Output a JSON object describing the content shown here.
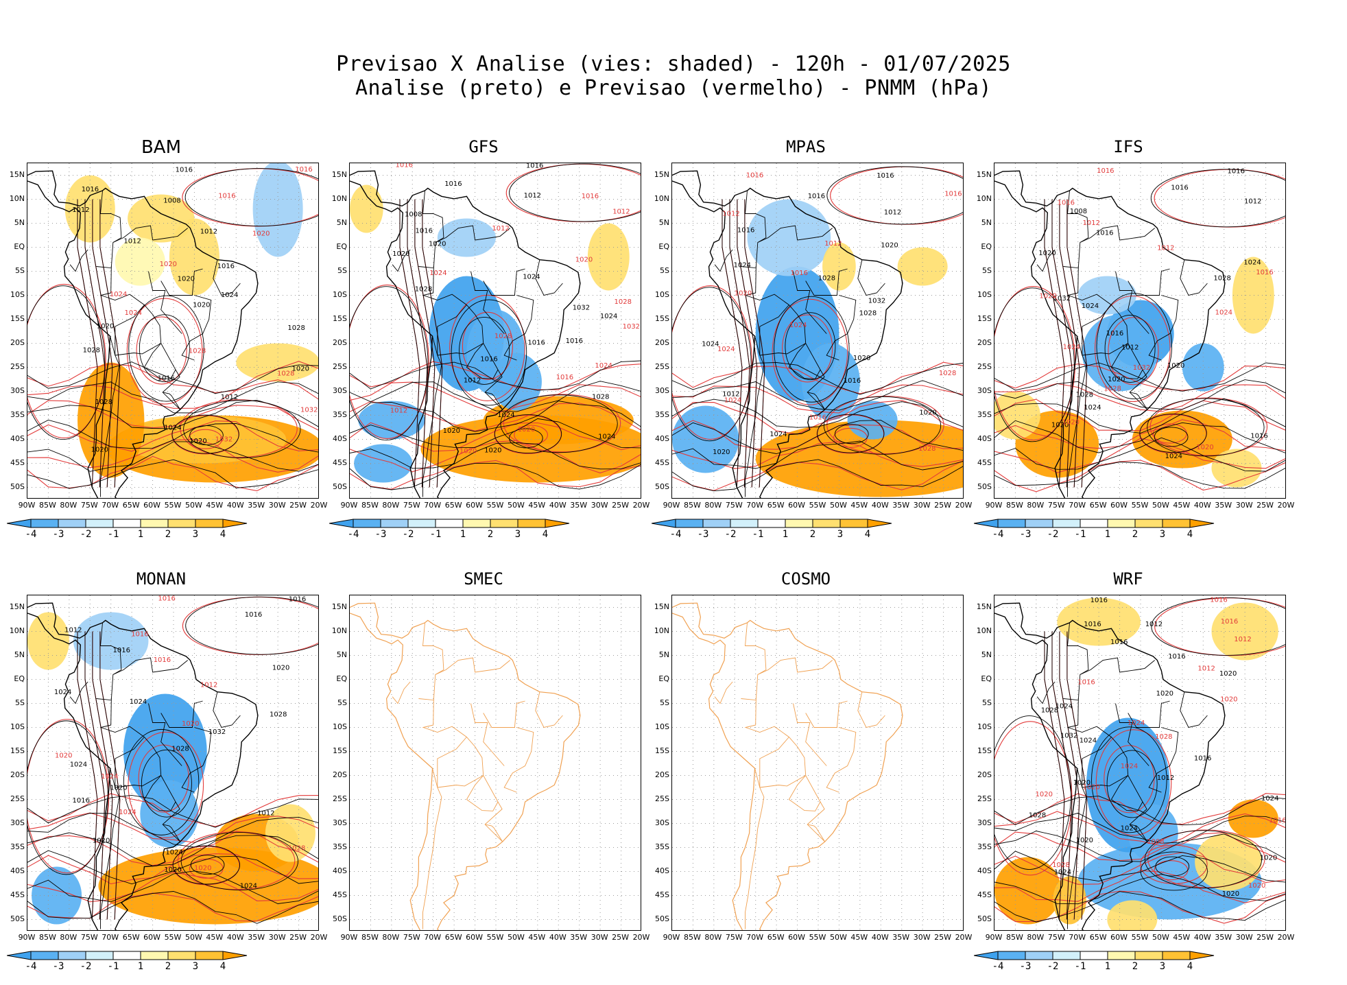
{
  "title": {
    "line1": "Previsao X Analise (vies: shaded) - 120h - 01/07/2025",
    "line2": "Analise (preto) e Previsao (vermelho) - PNMM (hPa)"
  },
  "axes": {
    "lat_labels": [
      "15N",
      "10N",
      "5N",
      "EQ",
      "5S",
      "10S",
      "15S",
      "20S",
      "25S",
      "30S",
      "35S",
      "40S",
      "45S",
      "50S"
    ],
    "lon_labels": [
      "90W",
      "85W",
      "80W",
      "75W",
      "70W",
      "65W",
      "60W",
      "55W",
      "50W",
      "45W",
      "40W",
      "35W",
      "30W",
      "25W",
      "20W"
    ]
  },
  "colorbar": {
    "ticks": [
      "-4",
      "-3",
      "-2",
      "-1",
      "1",
      "2",
      "3",
      "4"
    ],
    "colors": [
      "#3fa2ee",
      "#5ab1f2",
      "#9fd0f6",
      "#d2f0fa",
      "#ffffff",
      "#fff8b0",
      "#ffe070",
      "#ffc234",
      "#ffa000"
    ]
  },
  "colors": {
    "analysis_contour": "#000000",
    "forecast_contour": "#e23a3a",
    "empty_coastline": "#f0a050"
  },
  "panels": [
    {
      "name": "BAM",
      "has_data": true,
      "labels": {
        "black": [
          "1016",
          "1016",
          "1008",
          "1012",
          "1012",
          "1012",
          "1016",
          "1020",
          "1024",
          "1020",
          "1020",
          "1028",
          "1028",
          "1020",
          "1016",
          "1012",
          "1028",
          "1024",
          "1020",
          "1020"
        ],
        "red": [
          "1016",
          "1016",
          "1020",
          "1020",
          "1024",
          "1024",
          "1028",
          "1028",
          "1032",
          "1032"
        ]
      }
    },
    {
      "name": "GFS",
      "has_data": true,
      "labels": {
        "black": [
          "1016",
          "1016",
          "1012",
          "1008",
          "1016",
          "1020",
          "1020",
          "1024",
          "1028",
          "1032",
          "1024",
          "1016",
          "1016",
          "1016",
          "1012",
          "1028",
          "1024",
          "1020",
          "1024",
          "1020"
        ],
        "red": [
          "1016",
          "1016",
          "1012",
          "1012",
          "1020",
          "1024",
          "1028",
          "1032",
          "1028",
          "1024",
          "1016",
          "1012",
          "1020",
          "1020"
        ]
      }
    },
    {
      "name": "MPAS",
      "has_data": true,
      "labels": {
        "black": [
          "1016",
          "1016",
          "1012",
          "1016",
          "1020",
          "1024",
          "1028",
          "1032",
          "1028",
          "1024",
          "1020",
          "1016",
          "1012",
          "1020",
          "1024",
          "1020"
        ],
        "red": [
          "1016",
          "1016",
          "1012",
          "1012",
          "1016",
          "1020",
          "1024",
          "1024",
          "1028",
          "1024",
          "1016",
          "1028"
        ]
      }
    },
    {
      "name": "IFS",
      "has_data": true,
      "labels": {
        "black": [
          "1016",
          "1016",
          "1012",
          "1008",
          "1016",
          "1020",
          "1024",
          "1028",
          "1032",
          "1024",
          "1016",
          "1012",
          "1020",
          "1020",
          "1028",
          "1024",
          "1020",
          "1016",
          "1024"
        ],
        "red": [
          "1016",
          "1016",
          "1012",
          "1012",
          "1016",
          "1020",
          "1024",
          "1024",
          "1032",
          "1028",
          "1020",
          "1020"
        ]
      }
    },
    {
      "name": "MONAN",
      "has_data": true,
      "labels": {
        "black": [
          "1016",
          "1016",
          "1012",
          "1016",
          "1020",
          "1024",
          "1024",
          "1028",
          "1032",
          "1028",
          "1024",
          "1020",
          "1016",
          "1012",
          "1020",
          "1024",
          "1020",
          "1024"
        ],
        "red": [
          "1016",
          "1016",
          "1016",
          "1012",
          "1020",
          "1020",
          "1024",
          "1024",
          "1028",
          "1020"
        ]
      }
    },
    {
      "name": "SMEC",
      "has_data": false,
      "labels": {
        "black": [],
        "red": []
      }
    },
    {
      "name": "COSMO",
      "has_data": false,
      "labels": {
        "black": [],
        "red": []
      }
    },
    {
      "name": "WRF",
      "has_data": true,
      "labels": {
        "black": [
          "1016",
          "1016",
          "1012",
          "1016",
          "1016",
          "1020",
          "1020",
          "1024",
          "1028",
          "1032",
          "1024",
          "1016",
          "1012",
          "1020",
          "1024",
          "1028",
          "1024",
          "1020",
          "1020",
          "1024",
          "1020"
        ],
        "red": [
          "1016",
          "1016",
          "1012",
          "1012",
          "1016",
          "1020",
          "1024",
          "1028",
          "1024",
          "1020",
          "1020",
          "1016",
          "1008",
          "1028",
          "1020"
        ]
      }
    }
  ]
}
